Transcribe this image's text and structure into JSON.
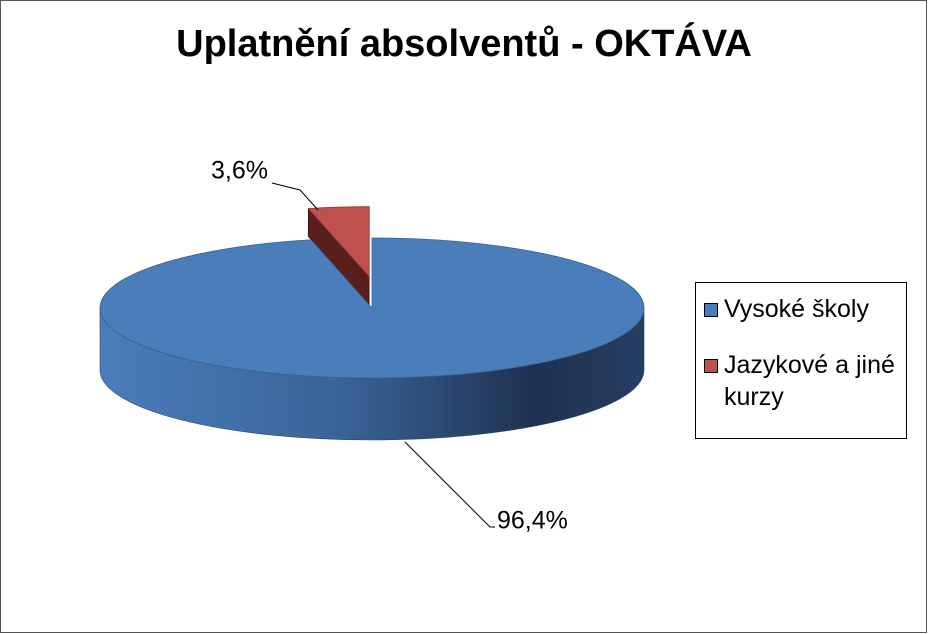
{
  "chart_data": {
    "type": "pie",
    "title": "Uplatnění absolventů - OKTÁVA",
    "categories": [
      "Vysoké školy",
      "Jazykové a jiné kurzy"
    ],
    "values": [
      96.4,
      3.6
    ],
    "value_labels": [
      "96,4%",
      "3,6%"
    ],
    "colors": [
      "#4a7ebb",
      "#c0504d"
    ],
    "legend": "right"
  }
}
